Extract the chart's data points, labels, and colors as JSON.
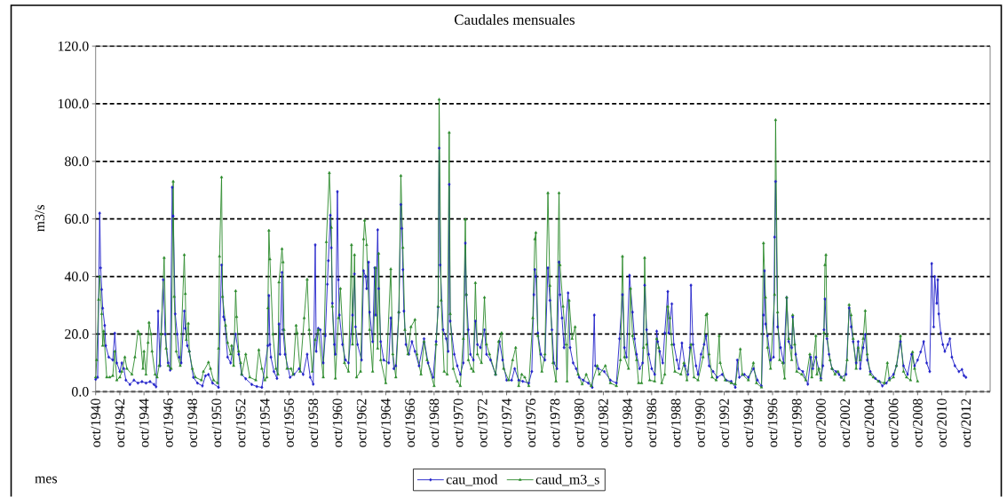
{
  "chart_data": {
    "type": "line",
    "title": "Caudales mensuales",
    "xlabel": "mes",
    "ylabel": "m3/s",
    "xlim": [
      "1940-10",
      "2014-10"
    ],
    "xticks": [
      {
        "value": "1940-10",
        "label": "oct/1940"
      },
      {
        "value": "1942-10",
        "label": "oct/1942"
      },
      {
        "value": "1944-10",
        "label": "oct/1944"
      },
      {
        "value": "1946-10",
        "label": "oct/1946"
      },
      {
        "value": "1948-10",
        "label": "oct/1948"
      },
      {
        "value": "1950-10",
        "label": "oct/1950"
      },
      {
        "value": "1952-10",
        "label": "oct/1952"
      },
      {
        "value": "1954-10",
        "label": "oct/1954"
      },
      {
        "value": "1956-10",
        "label": "oct/1956"
      },
      {
        "value": "1958-10",
        "label": "oct/1958"
      },
      {
        "value": "1960-10",
        "label": "oct/1960"
      },
      {
        "value": "1962-10",
        "label": "oct/1962"
      },
      {
        "value": "1964-10",
        "label": "oct/1964"
      },
      {
        "value": "1966-10",
        "label": "oct/1966"
      },
      {
        "value": "1968-10",
        "label": "oct/1968"
      },
      {
        "value": "1970-10",
        "label": "oct/1970"
      },
      {
        "value": "1972-10",
        "label": "oct/1972"
      },
      {
        "value": "1974-10",
        "label": "oct/1974"
      },
      {
        "value": "1976-10",
        "label": "oct/1976"
      },
      {
        "value": "1978-10",
        "label": "oct/1978"
      },
      {
        "value": "1980-10",
        "label": "oct/1980"
      },
      {
        "value": "1982-10",
        "label": "oct/1982"
      },
      {
        "value": "1984-10",
        "label": "oct/1984"
      },
      {
        "value": "1986-10",
        "label": "oct/1986"
      },
      {
        "value": "1988-10",
        "label": "oct/1988"
      },
      {
        "value": "1990-10",
        "label": "oct/1990"
      },
      {
        "value": "1992-10",
        "label": "oct/1992"
      },
      {
        "value": "1994-10",
        "label": "oct/1994"
      },
      {
        "value": "1996-10",
        "label": "oct/1996"
      },
      {
        "value": "1998-10",
        "label": "oct/1998"
      },
      {
        "value": "2000-10",
        "label": "oct/2000"
      },
      {
        "value": "2002-10",
        "label": "oct/2002"
      },
      {
        "value": "2004-10",
        "label": "oct/2004"
      },
      {
        "value": "2006-10",
        "label": "oct/2006"
      },
      {
        "value": "2008-10",
        "label": "oct/2008"
      },
      {
        "value": "2010-10",
        "label": "oct/2010"
      },
      {
        "value": "2012-10",
        "label": "oct/2012"
      }
    ],
    "ylim": [
      0,
      120
    ],
    "yticks": [
      {
        "value": 0,
        "label": "0.0"
      },
      {
        "value": 20,
        "label": "20.0"
      },
      {
        "value": 40,
        "label": "40.0"
      },
      {
        "value": 60,
        "label": "60.0"
      },
      {
        "value": 80,
        "label": "80.0"
      },
      {
        "value": 100,
        "label": "100.0"
      },
      {
        "value": 120,
        "label": "120.0"
      }
    ],
    "grid": "y",
    "legend": "bottom",
    "series": [
      {
        "name": "cau_mod",
        "color": "#1f1fc9",
        "marker": "diamond",
        "x": [
          "1940-10",
          "1940-12",
          "1941-02",
          "1941-03",
          "1941-04",
          "1941-05",
          "1941-07",
          "1941-08",
          "1941-11",
          "1942-03",
          "1942-05",
          "1942-07",
          "1942-10",
          "1942-12",
          "1943-02",
          "1943-04",
          "1943-08",
          "1943-12",
          "1944-04",
          "1944-08",
          "1944-12",
          "1945-04",
          "1945-08",
          "1945-10",
          "1945-12",
          "1946-02",
          "1946-05",
          "1946-07",
          "1946-10",
          "1946-12",
          "1947-02",
          "1947-03",
          "1947-05",
          "1947-07",
          "1947-09",
          "1947-11",
          "1948-02",
          "1948-03",
          "1948-05",
          "1948-07",
          "1948-11",
          "1949-03",
          "1949-08",
          "1949-11",
          "1950-02",
          "1950-06",
          "1950-12",
          "1951-03",
          "1951-05",
          "1951-06",
          "1951-09",
          "1951-12",
          "1952-05",
          "1952-08",
          "1952-11",
          "1953-03",
          "1953-09",
          "1954-02",
          "1954-07",
          "1955-01",
          "1955-02",
          "1955-03",
          "1955-04",
          "1955-07",
          "1955-10",
          "1955-12",
          "1956-01",
          "1956-03",
          "1956-04",
          "1956-06",
          "1956-11",
          "1957-03",
          "1957-08",
          "1957-12",
          "1958-04",
          "1958-07",
          "1958-10",
          "1958-12",
          "1959-01",
          "1959-03",
          "1959-05",
          "1959-08",
          "1959-10",
          "1959-12",
          "1960-01",
          "1960-03",
          "1960-04",
          "1960-05",
          "1960-07",
          "1960-08",
          "1960-10",
          "1960-11",
          "1960-12",
          "1961-03",
          "1961-06",
          "1961-09",
          "1962-01",
          "1962-03",
          "1962-04",
          "1962-06",
          "1962-10",
          "1962-12",
          "1963-02",
          "1963-03",
          "1963-05",
          "1963-06",
          "1963-09",
          "1963-11",
          "1963-12",
          "1964-02",
          "1964-03",
          "1964-05",
          "1964-08",
          "1965-01",
          "1965-03",
          "1965-06",
          "1965-08",
          "1965-11",
          "1966-01",
          "1966-02",
          "1966-03",
          "1966-04",
          "1966-06",
          "1966-09",
          "1966-12",
          "1967-03",
          "1967-07",
          "1967-12",
          "1968-04",
          "1968-09",
          "1968-12",
          "1969-02",
          "1969-03",
          "1969-04",
          "1969-07",
          "1969-10",
          "1969-12",
          "1970-01",
          "1970-02",
          "1970-06",
          "1970-09",
          "1970-12",
          "1971-03",
          "1971-05",
          "1971-06",
          "1971-08",
          "1971-10",
          "1972-01",
          "1972-03",
          "1972-05",
          "1972-08",
          "1972-12",
          "1973-02",
          "1973-06",
          "1973-11",
          "1974-03",
          "1974-06",
          "1974-10",
          "1975-03",
          "1975-06",
          "1975-10",
          "1976-02",
          "1976-08",
          "1976-11",
          "1977-01",
          "1977-02",
          "1977-03",
          "1977-05",
          "1977-08",
          "1977-12",
          "1978-03",
          "1978-05",
          "1978-07",
          "1978-09",
          "1978-12",
          "1979-02",
          "1979-03",
          "1979-05",
          "1979-07",
          "1979-11",
          "1980-01",
          "1980-04",
          "1980-07",
          "1980-10",
          "1981-02",
          "1981-07",
          "1981-11",
          "1982-01",
          "1982-02",
          "1982-05",
          "1982-11",
          "1983-05",
          "1983-11",
          "1984-02",
          "1984-05",
          "1984-07",
          "1984-09",
          "1984-12",
          "1985-03",
          "1985-05",
          "1985-07",
          "1985-10",
          "1986-01",
          "1986-03",
          "1986-05",
          "1986-07",
          "1986-10",
          "1987-01",
          "1987-03",
          "1987-04",
          "1987-06",
          "1987-09",
          "1987-11",
          "1988-02",
          "1988-03",
          "1988-06",
          "1988-08",
          "1988-11",
          "1989-01",
          "1989-04",
          "1989-07",
          "1989-10",
          "1989-12",
          "1990-01",
          "1990-03",
          "1990-06",
          "1990-08",
          "1990-11",
          "1991-02",
          "1991-04",
          "1991-07",
          "1991-11",
          "1992-03",
          "1992-08",
          "1992-12",
          "1993-05",
          "1993-09",
          "1993-11",
          "1994-01",
          "1994-06",
          "1994-10",
          "1995-03",
          "1995-07",
          "1995-11",
          "1996-01",
          "1996-02",
          "1996-03",
          "1996-05",
          "1996-08",
          "1996-11",
          "1996-12",
          "1997-01",
          "1997-03",
          "1997-06",
          "1997-09",
          "1997-12",
          "1998-02",
          "1998-05",
          "1998-06",
          "1998-09",
          "1998-12",
          "1999-04",
          "1999-09",
          "1999-12",
          "2000-02",
          "2000-05",
          "2000-10",
          "2000-12",
          "2001-01",
          "2001-02",
          "2001-04",
          "2001-06",
          "2001-09",
          "2002-01",
          "2002-04",
          "2002-06",
          "2002-11",
          "2003-02",
          "2003-04",
          "2003-06",
          "2003-09",
          "2003-11",
          "2004-01",
          "2004-04",
          "2004-06",
          "2004-08",
          "2004-11",
          "2005-04",
          "2005-08",
          "2005-11",
          "2006-03",
          "2006-06",
          "2006-10",
          "2007-01",
          "2007-05",
          "2007-08",
          "2007-12",
          "2008-04",
          "2008-07",
          "2008-10",
          "2009-01",
          "2009-04",
          "2009-07",
          "2009-10",
          "2009-12",
          "2010-02",
          "2010-03",
          "2010-05",
          "2010-06",
          "2010-07",
          "2010-09",
          "2010-11",
          "2011-01",
          "2011-04",
          "2011-06",
          "2011-08",
          "2011-11",
          "2012-03",
          "2012-06",
          "2012-08",
          "2012-10"
        ],
        "values": [
          4.3,
          5,
          62,
          43,
          35.5,
          29,
          23,
          16,
          12,
          11,
          20.3,
          10,
          7,
          10,
          8,
          4,
          2.5,
          4,
          3,
          3.5,
          3,
          3.5,
          2.5,
          1.7,
          28,
          9,
          38.9,
          20,
          10,
          7.5,
          71,
          61,
          27,
          20,
          12,
          10,
          28,
          22,
          16,
          14,
          5,
          3,
          2,
          5.5,
          6,
          3,
          1.5,
          44,
          26,
          25,
          12,
          10,
          20,
          13,
          6,
          4.5,
          2.5,
          1.8,
          1.5,
          16,
          33.4,
          16.4,
          12,
          7,
          4.6,
          23.5,
          13,
          41.4,
          21.5,
          13,
          5,
          6,
          8,
          6,
          13,
          5,
          2.6,
          51,
          14,
          22,
          21.5,
          10,
          19.4,
          37.3,
          45.5,
          61.3,
          50,
          30.7,
          16.4,
          13,
          69.5,
          38.9,
          26.6,
          16.4,
          11,
          10,
          26.6,
          40.9,
          22.5,
          16.4,
          11,
          42,
          40,
          35.8,
          45,
          27.6,
          17.4,
          43,
          26.6,
          56.2,
          35.8,
          17.4,
          11,
          10,
          25.6,
          8,
          9,
          27.6,
          65,
          56.7,
          42.4,
          28,
          16.4,
          13,
          17.4,
          14,
          9,
          18.4,
          10,
          5,
          17.4,
          29.4,
          84.6,
          44,
          21.5,
          18.4,
          14,
          72,
          24.5,
          13,
          9,
          6,
          10,
          51.6,
          33.7,
          21.5,
          13,
          11,
          24.5,
          16.4,
          15.3,
          21.5,
          13,
          11,
          6,
          17.4,
          11,
          4,
          4,
          8,
          4,
          3.6,
          3,
          7,
          33.7,
          42.4,
          40,
          20.4,
          13,
          11,
          43,
          31.7,
          21.5,
          10,
          8,
          45,
          33.7,
          25.6,
          15.3,
          34.3,
          15.3,
          10,
          8,
          5,
          4,
          3,
          1.5,
          26.6,
          9,
          8,
          7,
          4,
          3,
          18.4,
          33.7,
          15.3,
          12,
          40.4,
          27.6,
          18.4,
          13,
          8,
          10,
          37,
          21.5,
          13,
          8,
          6,
          21,
          17.4,
          14,
          10,
          20.4,
          34.8,
          20.4,
          30.5,
          16.4,
          11,
          8,
          16.9,
          9,
          6,
          15.3,
          37,
          16.4,
          9,
          6,
          13,
          16.4,
          19.4,
          9,
          7,
          5,
          6,
          4,
          3.6,
          1.5,
          11,
          5,
          6,
          5,
          8,
          4,
          2,
          26.6,
          42,
          23.5,
          19.4,
          11,
          12,
          53.7,
          73,
          22.5,
          15.3,
          10,
          32.7,
          17.4,
          15.3,
          26,
          13,
          8,
          7,
          2.6,
          12,
          8,
          12,
          4.6,
          9,
          21.5,
          32.2,
          18.4,
          13,
          8,
          7,
          6,
          5,
          6,
          29.1,
          22.5,
          17.4,
          10,
          17.4,
          8,
          15.3,
          19.9,
          11,
          7,
          4.6,
          3.6,
          2,
          3,
          4.6,
          6,
          9,
          17.4,
          9,
          6,
          13,
          9,
          11,
          13.8,
          17.4,
          10,
          7,
          44.5,
          22.5,
          40,
          30.7,
          38.9,
          27,
          20.4,
          16.4,
          14,
          16.4,
          18.4,
          12,
          9,
          7,
          7.7,
          5.6,
          5
        ]
      },
      {
        "name": "caud_m3_s",
        "color": "#2a8a2a",
        "marker": "triangle",
        "x": [
          "1940-10",
          "1940-11",
          "1941-01",
          "1941-02",
          "1941-04",
          "1941-05",
          "1941-06",
          "1941-09",
          "1941-12",
          "1942-03",
          "1942-05",
          "1942-07",
          "1942-10",
          "1942-12",
          "1943-03",
          "1943-05",
          "1943-10",
          "1944-01",
          "1944-04",
          "1944-06",
          "1944-09",
          "1944-10",
          "1944-12",
          "1945-02",
          "1945-03",
          "1945-05",
          "1945-06",
          "1945-09",
          "1945-11",
          "1946-01",
          "1946-03",
          "1946-06",
          "1946-08",
          "1946-10",
          "1947-01",
          "1947-03",
          "1947-04",
          "1947-06",
          "1947-10",
          "1948-02",
          "1948-03",
          "1948-04",
          "1948-06",
          "1948-07",
          "1948-10",
          "1949-01",
          "1949-07",
          "1949-09",
          "1950-02",
          "1950-04",
          "1950-07",
          "1950-11",
          "1950-12",
          "1951-01",
          "1951-03",
          "1951-04",
          "1951-07",
          "1951-09",
          "1951-12",
          "1952-01",
          "1952-03",
          "1952-05",
          "1952-06",
          "1952-08",
          "1952-10",
          "1952-11",
          "1953-03",
          "1953-07",
          "1954-01",
          "1954-04",
          "1954-07",
          "1954-10",
          "1954-12",
          "1955-01",
          "1955-02",
          "1955-03",
          "1955-06",
          "1955-09",
          "1955-11",
          "1955-12",
          "1956-03",
          "1956-04",
          "1956-05",
          "1956-08",
          "1956-12",
          "1957-02",
          "1957-05",
          "1957-06",
          "1957-09",
          "1958-01",
          "1958-04",
          "1958-06",
          "1958-09",
          "1958-12",
          "1959-03",
          "1959-08",
          "1959-11",
          "1960-02",
          "1960-04",
          "1960-05",
          "1960-08",
          "1960-11",
          "1961-01",
          "1961-05",
          "1961-09",
          "1961-12",
          "1962-01",
          "1962-03",
          "1962-05",
          "1962-09",
          "1962-12",
          "1963-01",
          "1963-03",
          "1963-06",
          "1963-09",
          "1963-12",
          "1964-02",
          "1964-03",
          "1964-05",
          "1964-10",
          "1965-03",
          "1965-05",
          "1965-08",
          "1965-11",
          "1966-01",
          "1966-03",
          "1966-05",
          "1966-08",
          "1966-11",
          "1967-03",
          "1967-05",
          "1967-09",
          "1967-12",
          "1968-03",
          "1968-10",
          "1968-12",
          "1969-02",
          "1969-03",
          "1969-05",
          "1969-08",
          "1969-11",
          "1970-01",
          "1970-02",
          "1970-05",
          "1970-09",
          "1970-12",
          "1971-03",
          "1971-05",
          "1971-06",
          "1971-08",
          "1971-11",
          "1972-01",
          "1972-03",
          "1972-05",
          "1972-09",
          "1972-12",
          "1973-02",
          "1973-05",
          "1973-11",
          "1974-02",
          "1974-05",
          "1974-07",
          "1974-12",
          "1975-04",
          "1975-07",
          "1975-10",
          "1976-01",
          "1976-04",
          "1976-08",
          "1976-12",
          "1977-02",
          "1977-03",
          "1977-05",
          "1977-09",
          "1977-12",
          "1978-03",
          "1978-05",
          "1978-08",
          "1978-11",
          "1979-02",
          "1979-03",
          "1979-06",
          "1979-09",
          "1979-10",
          "1979-12",
          "1980-03",
          "1980-06",
          "1980-09",
          "1981-01",
          "1981-05",
          "1981-10",
          "1982-04",
          "1982-06",
          "1982-12",
          "1983-05",
          "1983-11",
          "1984-03",
          "1984-05",
          "1984-07",
          "1984-11",
          "1985-01",
          "1985-03",
          "1985-07",
          "1985-09",
          "1985-12",
          "1986-02",
          "1986-03",
          "1986-05",
          "1986-08",
          "1987-01",
          "1987-03",
          "1987-05",
          "1987-08",
          "1987-11",
          "1988-02",
          "1988-04",
          "1988-06",
          "1988-09",
          "1989-03",
          "1989-06",
          "1989-09",
          "1990-01",
          "1990-04",
          "1990-08",
          "1991-01",
          "1991-04",
          "1991-05",
          "1991-07",
          "1991-10",
          "1992-02",
          "1992-05",
          "1992-06",
          "1992-11",
          "1993-05",
          "1993-09",
          "1994-02",
          "1994-04",
          "1994-10",
          "1995-03",
          "1995-06",
          "1995-11",
          "1996-01",
          "1996-03",
          "1996-05",
          "1996-08",
          "1996-12",
          "1997-01",
          "1997-03",
          "1997-05",
          "1997-08",
          "1997-10",
          "1997-12",
          "1998-02",
          "1998-05",
          "1998-06",
          "1998-08",
          "1998-10",
          "1999-03",
          "1999-07",
          "1999-11",
          "2000-01",
          "2000-05",
          "2000-06",
          "2000-08",
          "2000-10",
          "2001-01",
          "2001-02",
          "2001-03",
          "2001-04",
          "2001-07",
          "2001-09",
          "2001-12",
          "2002-03",
          "2002-06",
          "2002-09",
          "2002-12",
          "2003-02",
          "2003-04",
          "2003-06",
          "2003-09",
          "2003-11",
          "2004-01",
          "2004-04",
          "2004-06",
          "2004-08",
          "2004-11",
          "2005-02",
          "2005-07",
          "2006-01",
          "2006-04",
          "2006-06",
          "2006-10",
          "2007-01",
          "2007-05",
          "2007-08",
          "2007-11",
          "2008-03",
          "2008-05",
          "2008-07",
          "2008-10"
        ],
        "values": [
          5,
          11,
          32,
          40,
          27,
          16,
          21,
          5,
          5,
          5.5,
          14,
          4,
          5,
          7,
          12,
          8,
          6,
          12,
          21,
          20,
          8,
          14,
          6,
          17,
          24,
          20,
          14,
          6,
          5,
          9,
          20,
          46.5,
          15,
          9,
          8,
          73,
          33,
          14,
          9,
          47.5,
          34,
          18,
          23.7,
          14,
          8,
          5,
          4,
          7,
          10.2,
          8,
          4,
          3,
          15,
          47,
          74.5,
          33,
          23,
          17,
          13,
          16,
          9,
          35,
          26,
          14,
          10,
          6,
          13,
          5,
          4,
          14.5,
          8,
          4,
          5,
          29,
          56,
          46,
          20,
          8,
          6,
          38,
          49.6,
          45,
          21.5,
          8,
          8,
          6,
          23,
          20.4,
          7,
          25.6,
          39,
          21.5,
          7,
          18,
          21.5,
          5,
          52,
          76,
          57,
          29.6,
          4.6,
          25.6,
          35.8,
          10,
          7,
          51,
          16.4,
          47.5,
          5,
          7,
          53,
          59.5,
          51,
          21.5,
          7,
          43,
          15,
          48,
          11,
          3,
          42.6,
          13,
          5,
          27.6,
          75,
          50,
          21.5,
          13,
          22.5,
          25,
          13,
          6,
          17.4,
          11,
          2,
          16.4,
          29.6,
          101.5,
          31.7,
          7,
          6,
          90,
          27,
          8,
          3.6,
          2,
          18.4,
          59.8,
          33.7,
          11,
          8,
          7,
          37.8,
          13,
          10,
          32.7,
          16.4,
          13,
          6,
          17.4,
          20.4,
          8,
          4,
          11,
          15.3,
          2,
          6,
          5,
          2,
          25.6,
          53,
          55.2,
          19.4,
          7,
          13,
          69,
          36.8,
          10,
          3.6,
          69,
          44,
          29.6,
          16.4,
          3.6,
          31.7,
          18.4,
          22.5,
          6,
          2.6,
          6,
          2,
          9,
          6,
          9,
          3,
          2,
          11,
          47,
          12,
          8,
          35.8,
          19.4,
          11,
          3,
          3,
          15.3,
          46.5,
          16.4,
          4,
          3.6,
          18.4,
          15.3,
          3,
          6,
          29.6,
          25.6,
          16.4,
          7,
          6,
          10,
          4,
          16.4,
          5,
          4,
          12,
          26.6,
          27,
          13,
          5,
          4,
          19.4,
          10,
          4,
          3,
          2.6,
          14.8,
          6,
          4,
          10,
          3,
          1.5,
          51.6,
          32.7,
          15.3,
          8,
          33.7,
          94.4,
          27.6,
          11,
          10,
          4.6,
          32.7,
          18.4,
          11,
          26.6,
          16.4,
          7,
          6,
          4,
          13,
          5,
          19.4,
          6,
          8,
          4,
          20.4,
          44,
          47.5,
          19.4,
          11,
          8,
          6,
          7,
          5,
          4,
          11,
          30.2,
          26.6,
          18.4,
          8,
          15.3,
          11,
          18.4,
          28.1,
          13,
          6,
          5,
          3.6,
          3,
          10,
          4,
          5,
          9,
          19.4,
          7,
          5,
          4,
          13.8,
          8,
          3.6
        ]
      }
    ]
  }
}
